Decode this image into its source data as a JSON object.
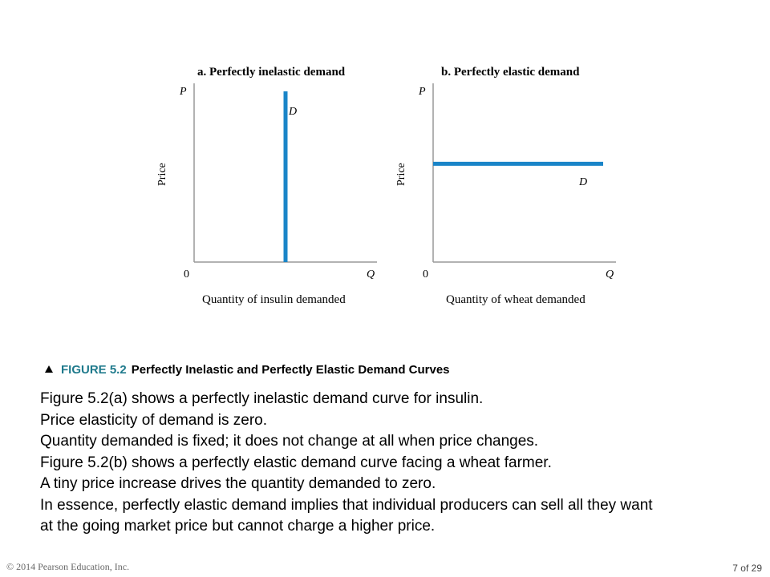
{
  "chart_data": [
    {
      "type": "line",
      "title": "a. Perfectly inelastic demand",
      "xlabel": "Quantity of insulin demanded",
      "ylabel": "Price",
      "y_axis_symbol": "P",
      "x_axis_symbol": "Q",
      "origin_label": "0",
      "curve_label": "D",
      "curve": "vertical",
      "series": [
        {
          "name": "D",
          "x": [
            0.5,
            0.5
          ],
          "y": [
            0,
            1
          ]
        }
      ],
      "xlim": [
        0,
        1
      ],
      "ylim": [
        0,
        1
      ],
      "color": "#1a85c8"
    },
    {
      "type": "line",
      "title": "b. Perfectly elastic demand",
      "xlabel": "Quantity of wheat demanded",
      "ylabel": "Price",
      "y_axis_symbol": "P",
      "x_axis_symbol": "Q",
      "origin_label": "0",
      "curve_label": "D",
      "curve": "horizontal",
      "series": [
        {
          "name": "D",
          "x": [
            0,
            1
          ],
          "y": [
            0.55,
            0.55
          ]
        }
      ],
      "xlim": [
        0,
        1
      ],
      "ylim": [
        0,
        1
      ],
      "color": "#1a85c8"
    }
  ],
  "caption": {
    "figure_number": "FIGURE 5.2",
    "title": "Perfectly Inelastic and Perfectly Elastic Demand Curves"
  },
  "body_lines": [
    "Figure 5.2(a) shows a perfectly inelastic demand curve for insulin.",
    "Price elasticity of demand is zero.",
    "Quantity demanded is fixed; it does not change at all when price changes.",
    "Figure 5.2(b) shows a perfectly elastic demand curve facing a wheat farmer.",
    "A tiny price increase drives the quantity demanded to zero.",
    "In essence, perfectly elastic demand implies that individual producers can sell all they want",
    "at the going market price but cannot charge a higher price."
  ],
  "footer": {
    "copyright": "© 2014 Pearson Education, Inc.",
    "page_label": "7 of 29"
  }
}
